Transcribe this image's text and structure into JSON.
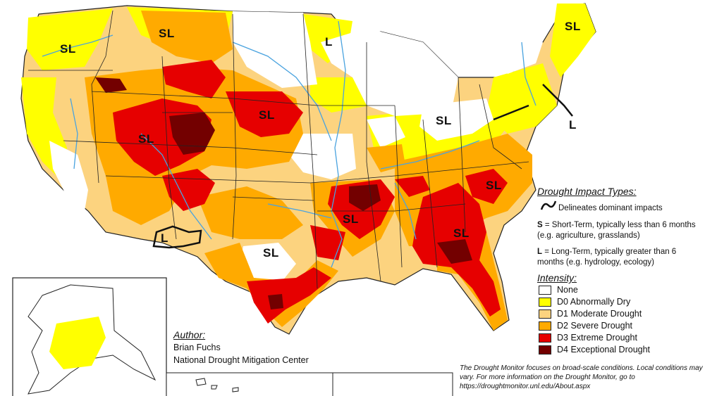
{
  "map_labels": [
    {
      "id": "sl-pacific-nw",
      "text": "SL"
    },
    {
      "id": "sl-montana",
      "text": "SL"
    },
    {
      "id": "l-great-lakes",
      "text": "L"
    },
    {
      "id": "sl-new-england",
      "text": "SL"
    },
    {
      "id": "sl-utah",
      "text": "SL"
    },
    {
      "id": "sl-nebraska",
      "text": "SL"
    },
    {
      "id": "sl-ohio",
      "text": "SL"
    },
    {
      "id": "l-mid-atlantic",
      "text": "L"
    },
    {
      "id": "sl-arkansas",
      "text": "SL"
    },
    {
      "id": "sl-texas",
      "text": "SL"
    },
    {
      "id": "l-new-mexico",
      "text": "L"
    },
    {
      "id": "sl-carolinas",
      "text": "SL"
    },
    {
      "id": "sl-georgia",
      "text": "SL"
    }
  ],
  "legend": {
    "impact_title": "Drought Impact Types:",
    "delineates": "Delineates dominant impacts",
    "s_key": "S",
    "s_text": " = Short-Term, typically less than 6 months (e.g. agriculture, grasslands)",
    "l_key": "L",
    "l_text": " = Long-Term, typically greater than 6 months (e.g. hydrology, ecology)",
    "intensity_title": "Intensity:",
    "items": [
      {
        "label": "None",
        "color": "#ffffff"
      },
      {
        "label": "D0 Abnormally Dry",
        "color": "#ffff00"
      },
      {
        "label": "D1 Moderate Drought",
        "color": "#fcd37f"
      },
      {
        "label": "D2 Severe Drought",
        "color": "#ffaa00"
      },
      {
        "label": "D3 Extreme Drought",
        "color": "#e60000"
      },
      {
        "label": "D4 Exceptional Drought",
        "color": "#730000"
      }
    ]
  },
  "author": {
    "title": "Author:",
    "name": "Brian Fuchs",
    "org": "National Drought Mitigation Center"
  },
  "note": "The Drought Monitor focuses on broad-scale conditions. Local conditions may vary. For more information on the Drought Monitor, go to https://droughtmonitor.unl.edu/About.aspx",
  "colors": {
    "none": "#ffffff",
    "d0": "#ffff00",
    "d1": "#fcd37f",
    "d2": "#ffaa00",
    "d3": "#e60000",
    "d4": "#730000",
    "water": "#4aa3df",
    "border": "#222222"
  }
}
